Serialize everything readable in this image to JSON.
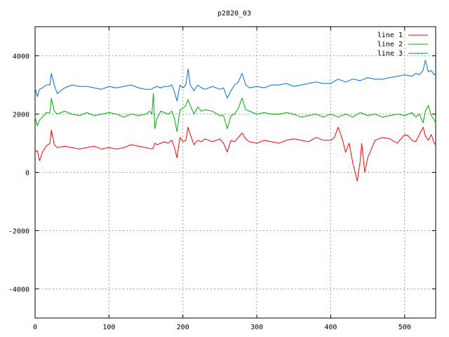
{
  "chart_data": {
    "type": "line",
    "title": "p2820_03",
    "xlabel": "",
    "ylabel": "",
    "xlim": [
      0,
      542
    ],
    "ylim": [
      -5000,
      5000
    ],
    "x_ticks": [
      0,
      100,
      200,
      300,
      400,
      500
    ],
    "y_ticks": [
      -4000,
      -2000,
      0,
      2000,
      4000
    ],
    "grid": true,
    "legend_position": "top-right",
    "series": [
      {
        "name": "line 1",
        "color": "#ff0000",
        "x": [
          0,
          3,
          6,
          10,
          15,
          20,
          22,
          26,
          30,
          40,
          50,
          60,
          70,
          80,
          90,
          100,
          110,
          120,
          130,
          140,
          150,
          158,
          160,
          162,
          165,
          170,
          175,
          180,
          185,
          188,
          192,
          196,
          200,
          204,
          207,
          210,
          215,
          220,
          225,
          230,
          240,
          250,
          255,
          260,
          265,
          270,
          275,
          280,
          285,
          290,
          300,
          310,
          320,
          330,
          340,
          350,
          360,
          370,
          380,
          390,
          400,
          405,
          410,
          413,
          416,
          420,
          425,
          430,
          433,
          436,
          440,
          442,
          446,
          450,
          455,
          460,
          470,
          480,
          490,
          500,
          505,
          510,
          515,
          520,
          525,
          528,
          532,
          536,
          540,
          542
        ],
        "values": [
          700,
          750,
          400,
          700,
          900,
          1000,
          1450,
          950,
          850,
          900,
          850,
          800,
          850,
          900,
          800,
          850,
          800,
          850,
          950,
          900,
          850,
          800,
          850,
          1000,
          950,
          1000,
          1050,
          1000,
          1100,
          900,
          500,
          1200,
          1050,
          1100,
          1550,
          1300,
          950,
          1100,
          1050,
          1150,
          1050,
          1150,
          1000,
          700,
          1100,
          1050,
          1200,
          1350,
          1150,
          1050,
          1000,
          1100,
          1050,
          1000,
          1100,
          1150,
          1100,
          1050,
          1200,
          1100,
          1100,
          1200,
          1550,
          1350,
          1100,
          700,
          1000,
          300,
          0,
          -300,
          400,
          1000,
          0,
          500,
          800,
          1100,
          1200,
          1150,
          1000,
          1300,
          1250,
          1100,
          1050,
          1300,
          1550,
          1250,
          1100,
          1300,
          1000,
          950
        ]
      },
      {
        "name": "line 2",
        "color": "#00b000",
        "x": [
          0,
          3,
          6,
          10,
          15,
          20,
          22,
          26,
          30,
          40,
          50,
          60,
          70,
          80,
          90,
          100,
          110,
          120,
          130,
          140,
          150,
          155,
          158,
          160,
          162,
          165,
          170,
          175,
          180,
          185,
          188,
          192,
          196,
          200,
          204,
          207,
          210,
          215,
          220,
          225,
          230,
          240,
          250,
          255,
          260,
          265,
          270,
          275,
          280,
          285,
          290,
          300,
          310,
          320,
          330,
          340,
          350,
          360,
          370,
          380,
          390,
          400,
          410,
          420,
          430,
          440,
          450,
          460,
          470,
          480,
          490,
          500,
          510,
          515,
          520,
          525,
          528,
          532,
          536,
          540,
          542
        ],
        "values": [
          1900,
          1600,
          1800,
          1900,
          2050,
          2050,
          2550,
          2100,
          2000,
          2100,
          2000,
          1950,
          2050,
          1950,
          2000,
          2050,
          2000,
          1900,
          2000,
          1950,
          2000,
          2100,
          2000,
          2700,
          1500,
          1850,
          2100,
          2050,
          2000,
          2100,
          1900,
          1400,
          2150,
          2200,
          2300,
          2500,
          2300,
          2000,
          2250,
          2100,
          2150,
          2100,
          1950,
          1950,
          1500,
          1950,
          2000,
          2200,
          2550,
          2150,
          2100,
          2000,
          2050,
          2000,
          2000,
          2050,
          2000,
          1900,
          1950,
          2000,
          1900,
          2000,
          1900,
          2000,
          1900,
          2050,
          1950,
          2000,
          1900,
          1950,
          2000,
          1950,
          2050,
          1900,
          2000,
          1700,
          2100,
          2300,
          1950,
          1800,
          1700
        ]
      },
      {
        "name": "line 3",
        "color": "#0070d0",
        "x": [
          0,
          3,
          6,
          10,
          15,
          20,
          22,
          26,
          30,
          40,
          50,
          60,
          70,
          80,
          90,
          100,
          110,
          120,
          130,
          140,
          150,
          158,
          160,
          165,
          170,
          175,
          180,
          185,
          188,
          192,
          196,
          200,
          204,
          207,
          210,
          215,
          220,
          225,
          230,
          240,
          250,
          255,
          260,
          265,
          270,
          275,
          280,
          285,
          290,
          300,
          310,
          320,
          330,
          340,
          350,
          360,
          370,
          380,
          390,
          400,
          410,
          420,
          430,
          440,
          450,
          460,
          470,
          480,
          490,
          500,
          510,
          515,
          520,
          525,
          528,
          532,
          536,
          540,
          542
        ],
        "values": [
          2900,
          2600,
          2850,
          2900,
          3000,
          3000,
          3400,
          3000,
          2700,
          2900,
          3000,
          2950,
          2950,
          2900,
          2850,
          2950,
          2900,
          2950,
          3000,
          2900,
          2850,
          2850,
          2900,
          2950,
          2900,
          2950,
          2950,
          3000,
          2800,
          2450,
          3000,
          2900,
          3000,
          3550,
          3000,
          2800,
          3000,
          2900,
          2850,
          2950,
          2850,
          2900,
          2550,
          2800,
          3000,
          3100,
          3400,
          3000,
          2900,
          2950,
          2900,
          3000,
          3000,
          3050,
          2950,
          3000,
          3050,
          3100,
          3050,
          3050,
          3200,
          3100,
          3200,
          3150,
          3250,
          3200,
          3200,
          3250,
          3300,
          3350,
          3300,
          3400,
          3350,
          3500,
          3850,
          3450,
          3500,
          3350,
          3400
        ]
      }
    ]
  }
}
